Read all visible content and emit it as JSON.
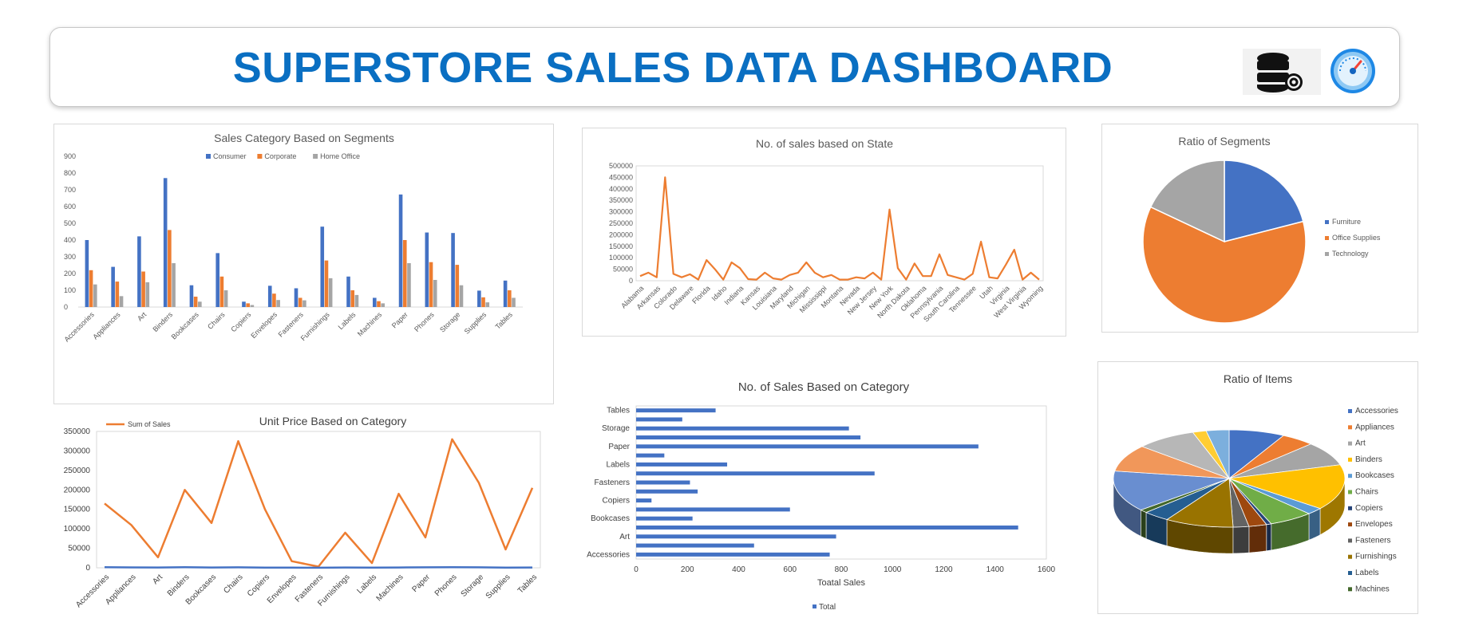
{
  "header": {
    "title": "SUPERSTORE SALES DATA DASHBOARD",
    "icons": [
      "database-gear-icon",
      "speedometer-icon"
    ]
  },
  "colors": {
    "blue": "#4472C4",
    "orange": "#ED7D31",
    "gray": "#A5A5A5",
    "title_blue": "#0A6FC2"
  },
  "chart_data": [
    {
      "id": "segments",
      "type": "bar",
      "title": "Sales Category Based on Segments",
      "categories": [
        "Accessories",
        "Appliances",
        "Art",
        "Binders",
        "Bookcases",
        "Chairs",
        "Copiers",
        "Envelopes",
        "Fasteners",
        "Furnishings",
        "Labels",
        "Machines",
        "Paper",
        "Phones",
        "Storage",
        "Supplies",
        "Tables"
      ],
      "series": [
        {
          "name": "Consumer",
          "values": [
            400,
            240,
            422,
            770,
            130,
            322,
            32,
            127,
            112,
            480,
            182,
            55,
            672,
            445,
            442,
            98,
            158
          ]
        },
        {
          "name": "Corporate",
          "values": [
            220,
            152,
            212,
            460,
            62,
            182,
            22,
            80,
            55,
            278,
            100,
            35,
            400,
            268,
            252,
            58,
            100
          ]
        },
        {
          "name": "Home Office",
          "values": [
            135,
            65,
            148,
            262,
            32,
            100,
            12,
            42,
            40,
            172,
            72,
            22,
            262,
            162,
            130,
            28,
            55
          ]
        }
      ],
      "yticks": [
        "0",
        "100",
        "200",
        "300",
        "400",
        "500",
        "600",
        "700",
        "800",
        "900"
      ],
      "ylim": [
        0,
        900
      ],
      "legend": "top"
    },
    {
      "id": "state",
      "type": "line",
      "title": "No. of sales based on State",
      "x_labels": [
        "Alabama",
        "Arkansas",
        "Colorado",
        "Delaware",
        "Florida",
        "Idaho",
        "Indiana",
        "Kansas",
        "Louisiana",
        "Maryland",
        "Michigan",
        "Mississippi",
        "Montana",
        "Nevada",
        "New Jersey",
        "New York",
        "North Dakota",
        "Oklahoma",
        "Pennsylvania",
        "South Carolina",
        "Tennessee",
        "Utah",
        "Virginia",
        "West Virginia",
        "Wyoming"
      ],
      "values": [
        20000,
        35000,
        15000,
        450000,
        30000,
        15000,
        28000,
        5000,
        90000,
        50000,
        5000,
        80000,
        55000,
        7000,
        5000,
        35000,
        10000,
        5000,
        25000,
        35000,
        80000,
        35000,
        15000,
        25000,
        5000,
        5000,
        15000,
        10000,
        35000,
        5000,
        310000,
        55000,
        5000,
        75000,
        20000,
        20000,
        115000,
        25000,
        15000,
        5000,
        30000,
        170000,
        15000,
        10000,
        70000,
        135000,
        5000,
        35000,
        5000
      ],
      "yticks": [
        "0",
        "50000",
        "100000",
        "150000",
        "200000",
        "250000",
        "300000",
        "350000",
        "400000",
        "450000",
        "500000"
      ],
      "ylim": [
        0,
        500000
      ]
    },
    {
      "id": "segments_pie",
      "type": "pie",
      "title": "Ratio of Segments",
      "labels": [
        "Furniture",
        "Office Supplies",
        "Technology"
      ],
      "values": [
        21,
        61,
        18
      ],
      "legend": "right"
    },
    {
      "id": "unit_price",
      "type": "line",
      "title": "Unit Price Based on Category",
      "categories": [
        "Accessories",
        "Appliances",
        "Art",
        "Binders",
        "Bookcases",
        "Chairs",
        "Copiers",
        "Envelopes",
        "Fasteners",
        "Furnishings",
        "Labels",
        "Machines",
        "Paper",
        "Phones",
        "Storage",
        "Supplies",
        "Tables"
      ],
      "series": [
        {
          "name": "Sum of Sales",
          "values": [
            165000,
            110000,
            27000,
            200000,
            115000,
            325000,
            150000,
            17000,
            3000,
            90000,
            12000,
            190000,
            78000,
            330000,
            218000,
            47000,
            205000
          ]
        },
        {
          "name": "",
          "values": [
            1500,
            1000,
            800,
            1500,
            900,
            1200,
            600,
            500,
            300,
            900,
            400,
            800,
            1200,
            1500,
            1200,
            400,
            800
          ]
        }
      ],
      "yticks": [
        "0",
        "50000",
        "100000",
        "150000",
        "200000",
        "250000",
        "300000",
        "350000"
      ],
      "ylim": [
        0,
        350000
      ],
      "legend": "top-left"
    },
    {
      "id": "category_count",
      "type": "bar",
      "orientation": "horizontal",
      "title": "No. of Sales Based on Category",
      "categories": [
        "Accessories",
        "Appliances",
        "Art",
        "Binders",
        "Bookcases",
        "Chairs",
        "Copiers",
        "Envelopes",
        "Fasteners",
        "Furnishings",
        "Labels",
        "Machines",
        "Paper",
        "Phones",
        "Storage",
        "Supplies",
        "Tables"
      ],
      "category_labels_shown": [
        "Accessories",
        "Art",
        "Bookcases",
        "Copiers",
        "Fasteners",
        "Labels",
        "Paper",
        "Storage",
        "Tables"
      ],
      "values": [
        755,
        460,
        780,
        1490,
        220,
        600,
        60,
        240,
        210,
        930,
        355,
        110,
        1335,
        875,
        830,
        180,
        310
      ],
      "xticks": [
        "0",
        "200",
        "400",
        "600",
        "800",
        "1000",
        "1200",
        "1400",
        "1600"
      ],
      "xlim": [
        0,
        1600
      ],
      "xlabel": "Toatal Sales",
      "legend_label": "Total",
      "legend": "bottom"
    },
    {
      "id": "items_pie",
      "type": "pie",
      "title": "Ratio of Items",
      "labels": [
        "Accessories",
        "Appliances",
        "Art",
        "Binders",
        "Bookcases",
        "Chairs",
        "Copiers",
        "Envelopes",
        "Fasteners",
        "Furnishings",
        "Labels",
        "Machines",
        "Paper",
        "Phones",
        "Storage",
        "Supplies",
        "Tables"
      ],
      "legend_shown": [
        "Accessories",
        "Appliances",
        "Art",
        "Binders",
        "Bookcases",
        "Chairs",
        "Copiers",
        "Envelopes",
        "Fasteners",
        "Furnishings",
        "Labels",
        "Machines"
      ],
      "values": [
        7.8,
        4.7,
        8.0,
        15.2,
        2.3,
        6.2,
        0.7,
        2.5,
        2.2,
        9.6,
        3.7,
        1.1,
        13.7,
        9.0,
        8.5,
        1.9,
        3.2
      ],
      "colors": [
        "#4472C4",
        "#ED7D31",
        "#A5A5A5",
        "#FFC000",
        "#5B9BD5",
        "#70AD47",
        "#264478",
        "#9E480E",
        "#636363",
        "#997300",
        "#255E91",
        "#43682B",
        "#698ED0",
        "#F1975A",
        "#B7B7B7",
        "#FFCD33",
        "#7CAFDD"
      ],
      "legend": "right"
    }
  ]
}
